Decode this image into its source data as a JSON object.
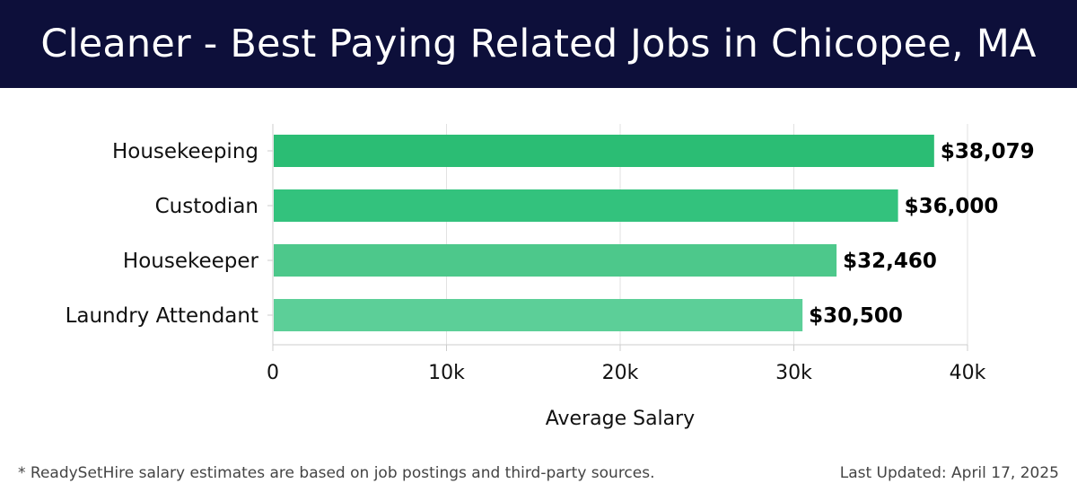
{
  "header": {
    "title": "Cleaner - Best Paying Related Jobs in Chicopee, MA"
  },
  "colors": {
    "header_bg": "#0d0f3a",
    "bars": [
      "#2bbd74",
      "#33c27d",
      "#4dc88b",
      "#5ccf98"
    ]
  },
  "chart_data": {
    "type": "bar",
    "orientation": "horizontal",
    "title": "Cleaner - Best Paying Related Jobs in Chicopee, MA",
    "categories": [
      "Housekeeping",
      "Custodian",
      "Housekeeper",
      "Laundry Attendant"
    ],
    "values": [
      38079,
      36000,
      32460,
      30500
    ],
    "value_labels": [
      "$38,079",
      "$36,000",
      "$32,460",
      "$30,500"
    ],
    "xlabel": "Average Salary",
    "ylabel": "",
    "xlim": [
      0,
      40000
    ],
    "xticks": [
      0,
      10000,
      20000,
      30000,
      40000
    ],
    "xtick_labels": [
      "0",
      "10k",
      "20k",
      "30k",
      "40k"
    ],
    "grid": true
  },
  "footer": {
    "note": "* ReadySetHire salary estimates are based on job postings and third-party sources.",
    "updated": "Last Updated: April 17, 2025"
  }
}
